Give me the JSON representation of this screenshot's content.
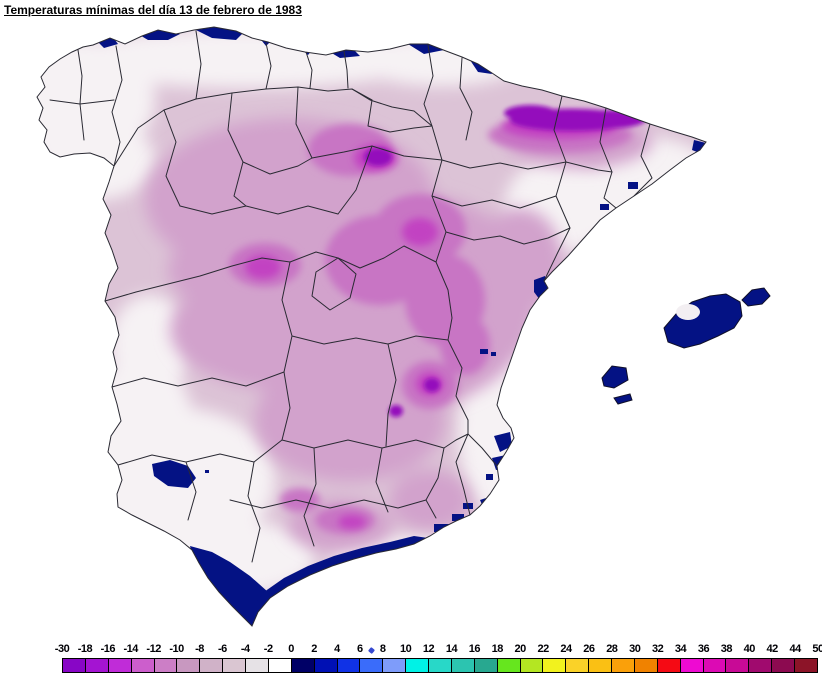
{
  "title": "Temperaturas mínimas del día 13 de febrero de 1983",
  "legend": {
    "labels": [
      "-30",
      "-18",
      "-16",
      "-14",
      "-12",
      "-10",
      "-8",
      "-6",
      "-4",
      "-2",
      "0",
      "2",
      "4",
      "6",
      "8",
      "10",
      "12",
      "14",
      "16",
      "18",
      "20",
      "22",
      "24",
      "26",
      "28",
      "30",
      "32",
      "34",
      "36",
      "38",
      "40",
      "42",
      "44",
      "50"
    ],
    "cell_colors": [
      "#8806c6",
      "#a414d2",
      "#c02cd8",
      "#cc5ecc",
      "#cc7ec6",
      "#c898c0",
      "#d0b2c8",
      "#dac6d2",
      "#e6e2e6",
      "#ffffff",
      "#000066",
      "#0010b4",
      "#1032e6",
      "#3a6cfa",
      "#7e9cfa",
      "#00f2e6",
      "#28d8c8",
      "#2cc4b0",
      "#28a890",
      "#66e61e",
      "#b4e622",
      "#f2f21e",
      "#fad228",
      "#fac014",
      "#faa00a",
      "#f08200",
      "#f50a14",
      "#ee0ad2",
      "#dc0ab4",
      "#c80a96",
      "#a00a6e",
      "#8c0a50",
      "#8c1428"
    ],
    "text_color": "#000005",
    "border_color": "#000000",
    "cursor_dot_color": "#3548d0"
  },
  "map": {
    "palette": {
      "base_pink": "#dcc3d6",
      "near_white": "#f6f2f4",
      "pink": "#d2a2cc",
      "magenta": "#c874c4",
      "bright_magenta": "#c243c2",
      "dark_violet": "#9410bc",
      "navy_coast": "#041284",
      "border_line": "#2a2a33"
    }
  }
}
